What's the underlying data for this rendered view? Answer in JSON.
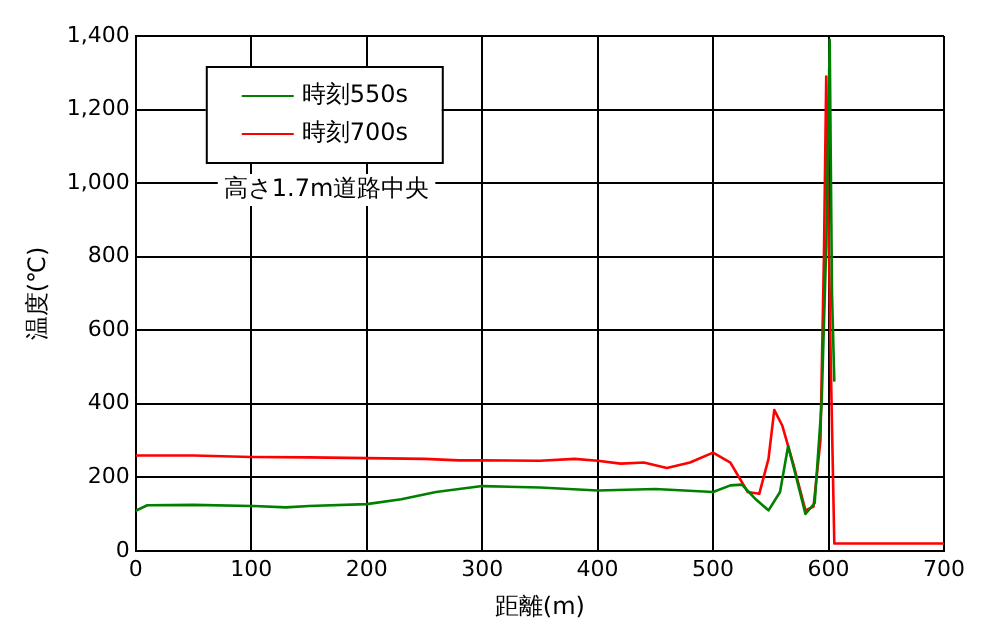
{
  "chart_data": {
    "type": "line",
    "xlabel": "距離(m)",
    "ylabel": "温度(℃)",
    "annotations": [
      "高さ1.7m道路中央"
    ],
    "xlim": [
      0,
      700
    ],
    "xticks": [
      0,
      100,
      200,
      300,
      400,
      500,
      600,
      700
    ],
    "ylim": [
      0,
      1400
    ],
    "yticks": [
      0,
      200,
      400,
      600,
      800,
      {
        "value": 1000,
        "label": "1,000"
      },
      {
        "value": 1200,
        "label": "1,200"
      },
      {
        "value": 1400,
        "label": "1,400"
      }
    ],
    "grid": true,
    "legend": "top left",
    "marker": "none",
    "line_style": "solid",
    "series": [
      {
        "name": "時刻550s",
        "color": "#008000",
        "x": [
          0,
          10,
          50,
          100,
          130,
          150,
          200,
          230,
          260,
          300,
          350,
          400,
          450,
          500,
          515,
          525,
          537,
          548,
          558,
          565,
          572,
          580,
          588,
          594,
          598,
          601,
          603,
          605
        ],
        "values": [
          109,
          124,
          125,
          122,
          118,
          122,
          127,
          140,
          160,
          176,
          172,
          164,
          168,
          160,
          178,
          180,
          140,
          110,
          160,
          285,
          200,
          100,
          130,
          400,
          830,
          1390,
          700,
          460
        ]
      },
      {
        "name": "時刻700s",
        "color": "#ff0000",
        "x": [
          0,
          50,
          100,
          150,
          200,
          250,
          280,
          300,
          350,
          380,
          400,
          420,
          440,
          460,
          480,
          500,
          515,
          530,
          540,
          548,
          553,
          560,
          570,
          580,
          587,
          593,
          596,
          598,
          600,
          602,
          605,
          700
        ],
        "values": [
          259,
          259,
          255,
          254,
          252,
          250,
          246,
          246,
          245,
          250,
          245,
          237,
          240,
          225,
          240,
          267,
          240,
          160,
          155,
          250,
          383,
          340,
          230,
          110,
          120,
          300,
          800,
          1290,
          900,
          500,
          20,
          20
        ]
      }
    ]
  }
}
